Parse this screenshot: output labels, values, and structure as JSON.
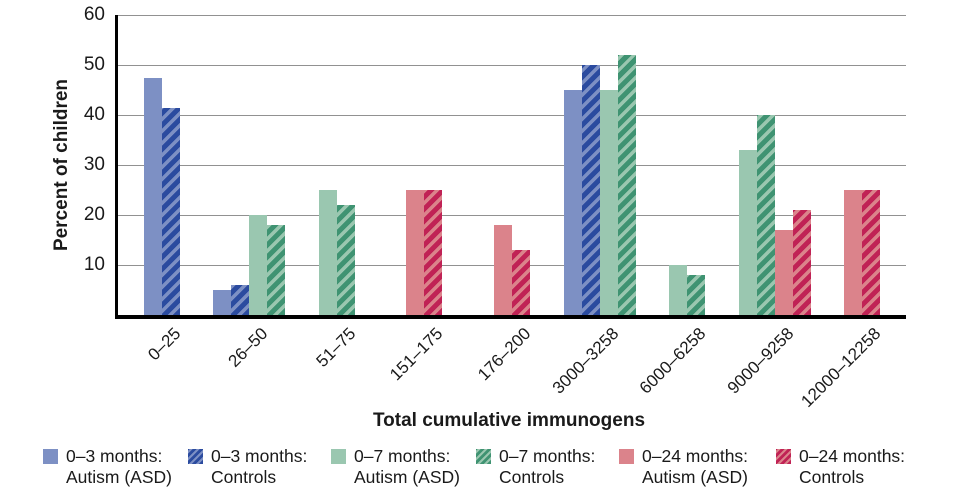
{
  "chart_data": {
    "type": "bar",
    "title": "",
    "xlabel": "Total cumulative immunogens",
    "ylabel": "Percent of children",
    "ylim": [
      0,
      60
    ],
    "y_ticks": [
      10,
      20,
      30,
      40,
      50,
      60
    ],
    "grid": "horizontal",
    "legend_position": "bottom",
    "categories": [
      "0–25",
      "26–50",
      "51–75",
      "151–175",
      "176–200",
      "3000–3258",
      "6000–6258",
      "9000–9258",
      "12000–12258"
    ],
    "series": [
      {
        "period": "0–3 months:",
        "group": "Autism (ASD)",
        "fill": "solid",
        "color": "#7d90c4",
        "values": [
          47.5,
          5,
          null,
          null,
          null,
          45,
          null,
          null,
          null
        ]
      },
      {
        "period": "0–3 months:",
        "group": "Controls",
        "fill": "hatched",
        "color": "#2b4b9f",
        "stripe_color": "#7d90c4",
        "values": [
          41.5,
          6,
          null,
          null,
          null,
          50,
          null,
          null,
          null
        ]
      },
      {
        "period": "0–7 months:",
        "group": "Autism (ASD)",
        "fill": "solid",
        "color": "#9ac7b0",
        "values": [
          null,
          20,
          25,
          null,
          null,
          45,
          10,
          33,
          null
        ]
      },
      {
        "period": "0–7 months:",
        "group": "Controls",
        "fill": "hatched",
        "color": "#3f9372",
        "stripe_color": "#9ac7b0",
        "values": [
          null,
          18,
          22,
          null,
          null,
          52,
          8,
          40,
          null
        ]
      },
      {
        "period": "0–24 months:",
        "group": "Autism (ASD)",
        "fill": "solid",
        "color": "#db838b",
        "values": [
          null,
          null,
          null,
          25,
          18,
          null,
          null,
          17,
          25
        ]
      },
      {
        "period": "0–24 months:",
        "group": "Controls",
        "fill": "hatched",
        "color": "#c02255",
        "stripe_color": "#db838b",
        "values": [
          null,
          null,
          null,
          25,
          13,
          null,
          null,
          21,
          25
        ]
      }
    ],
    "colors": {
      "axis": "#000000",
      "gridline": "#919191",
      "text": "#1a1a1a"
    }
  }
}
